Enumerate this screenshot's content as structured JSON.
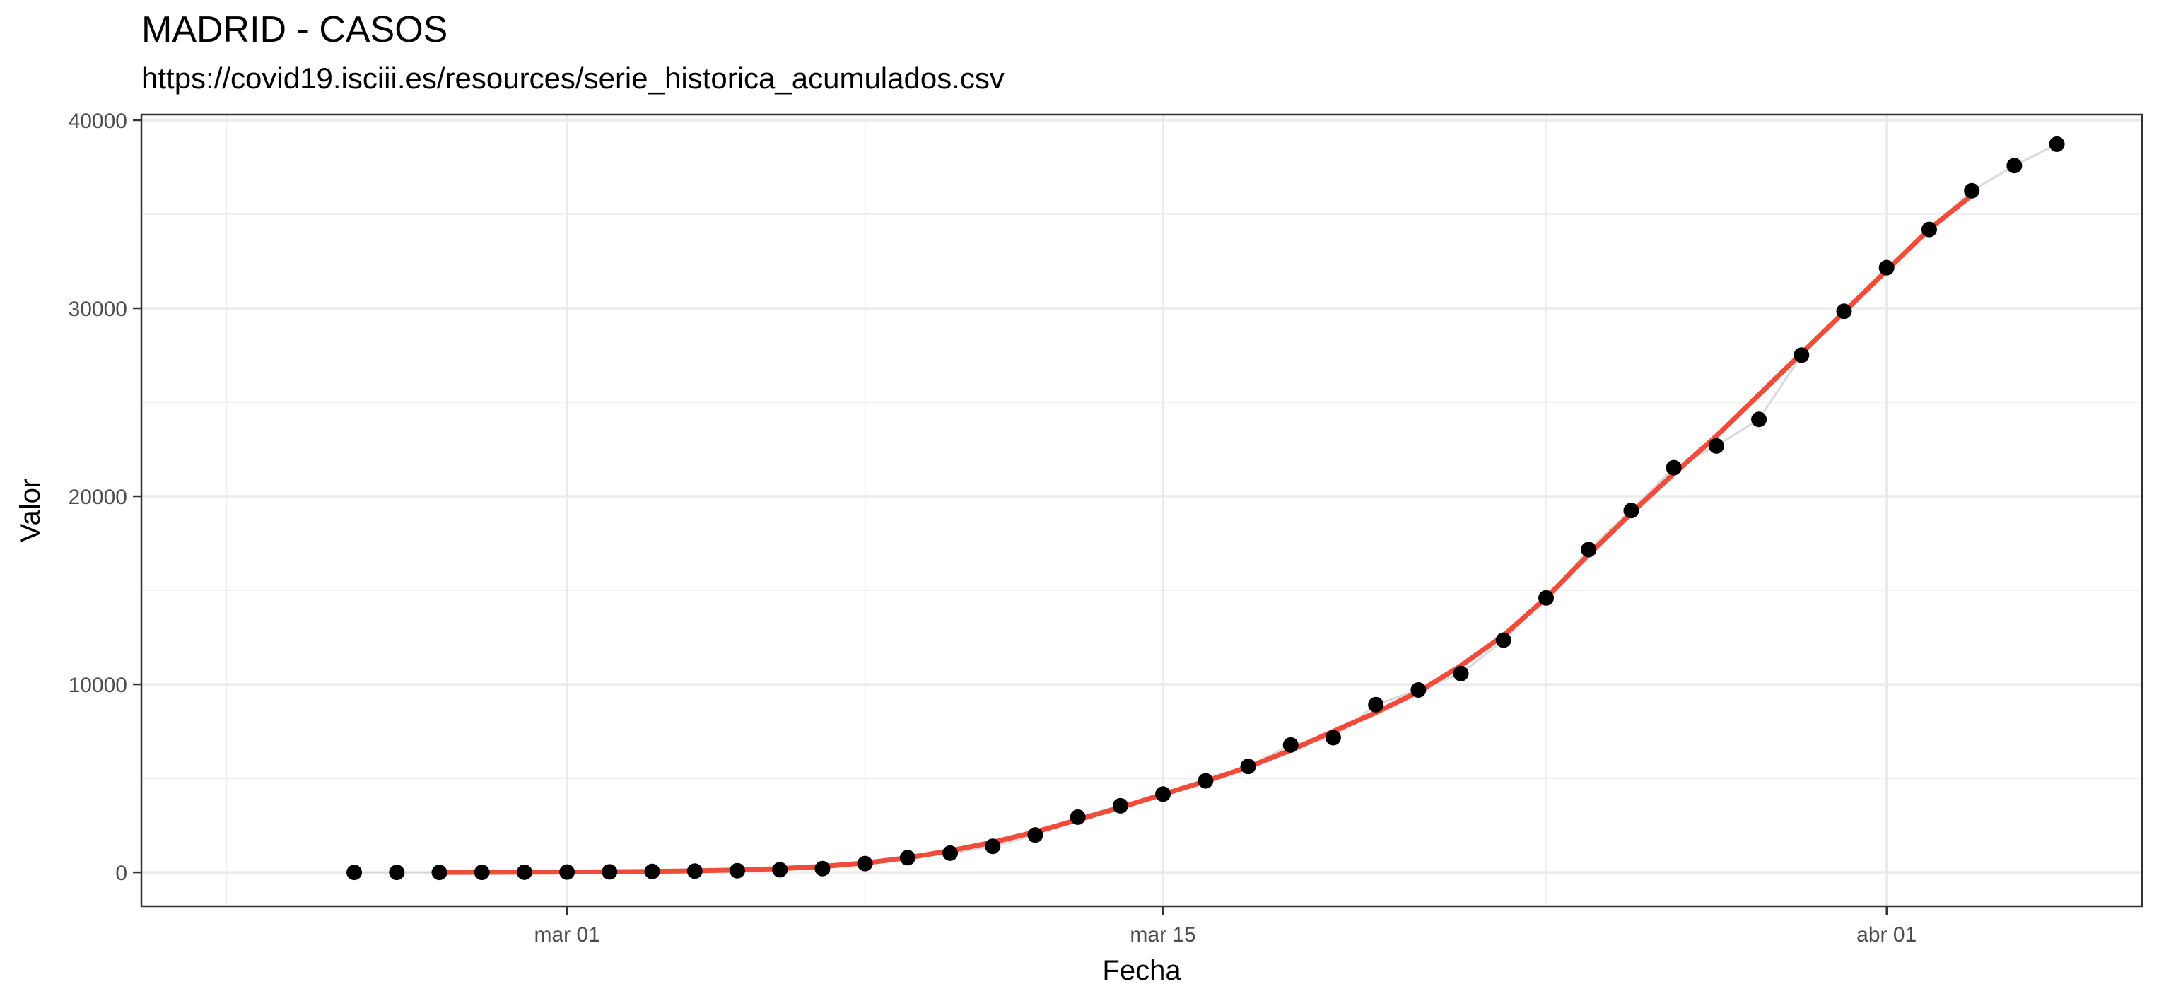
{
  "chart_data": {
    "type": "scatter",
    "title": "MADRID - CASOS",
    "subtitle": "https://covid19.isciii.es/resources/serie_historica_acumulados.csv",
    "xlabel": "Fecha",
    "ylabel": "Valor",
    "xlim": [
      "2020-02-20",
      "2020-04-07"
    ],
    "ylim": [
      -1800,
      40300
    ],
    "x_ticks": [
      {
        "date": "2020-03-01",
        "label": "mar 01"
      },
      {
        "date": "2020-03-15",
        "label": "mar 15"
      },
      {
        "date": "2020-04-01",
        "label": "abr 01"
      }
    ],
    "x_minor_ticks": [
      "2020-02-22",
      "2020-03-08",
      "2020-03-24"
    ],
    "y_ticks": [
      0,
      10000,
      20000,
      30000,
      40000
    ],
    "y_tick_labels": [
      "0",
      "10000",
      "20000",
      "30000",
      "40000"
    ],
    "y_minor_ticks": [
      5000,
      15000,
      25000,
      35000
    ],
    "grid": true,
    "legend": "none",
    "colors": {
      "points": "#000000",
      "smooth": "#f14b3a",
      "connector": "#d9d9d9",
      "grid": "#ebebeb",
      "panel_border": "#333333"
    },
    "series": [
      {
        "kind": "points",
        "x": [
          "2020-02-25",
          "2020-02-26",
          "2020-02-27",
          "2020-02-28",
          "2020-02-29",
          "2020-03-01",
          "2020-03-02",
          "2020-03-03",
          "2020-03-04",
          "2020-03-05",
          "2020-03-06",
          "2020-03-07",
          "2020-03-08",
          "2020-03-09",
          "2020-03-10",
          "2020-03-11",
          "2020-03-12",
          "2020-03-13",
          "2020-03-14",
          "2020-03-15",
          "2020-03-16",
          "2020-03-17",
          "2020-03-18",
          "2020-03-19",
          "2020-03-20",
          "2020-03-21",
          "2020-03-22",
          "2020-03-23",
          "2020-03-24",
          "2020-03-25",
          "2020-03-26",
          "2020-03-27",
          "2020-03-28",
          "2020-03-29",
          "2020-03-30",
          "2020-03-31",
          "2020-04-01",
          "2020-04-02",
          "2020-04-03",
          "2020-04-04",
          "2020-04-05"
        ],
        "y": [
          0,
          0,
          0,
          3,
          10,
          17,
          29,
          49,
          70,
          90,
          137,
          202,
          469,
          782,
          1024,
          1388,
          1990,
          2940,
          3544,
          4165,
          4871,
          5637,
          6777,
          7165,
          8921,
          9702,
          10575,
          12352,
          14597,
          17166,
          19243,
          21520,
          22677,
          24090,
          27509,
          29840,
          32155,
          34188,
          36249,
          37584,
          38724
        ]
      },
      {
        "kind": "smooth",
        "x": [
          "2020-02-27",
          "2020-02-28",
          "2020-02-29",
          "2020-03-01",
          "2020-03-02",
          "2020-03-03",
          "2020-03-04",
          "2020-03-05",
          "2020-03-06",
          "2020-03-07",
          "2020-03-08",
          "2020-03-09",
          "2020-03-10",
          "2020-03-11",
          "2020-03-12",
          "2020-03-13",
          "2020-03-14",
          "2020-03-15",
          "2020-03-16",
          "2020-03-17",
          "2020-03-18",
          "2020-03-19",
          "2020-03-20",
          "2020-03-21",
          "2020-03-22",
          "2020-03-23",
          "2020-03-24",
          "2020-03-25",
          "2020-03-26",
          "2020-03-27",
          "2020-03-28",
          "2020-03-29",
          "2020-03-30",
          "2020-03-31",
          "2020-04-01",
          "2020-04-02",
          "2020-04-03"
        ],
        "y": [
          0,
          5,
          12,
          20,
          35,
          55,
          85,
          130,
          200,
          320,
          500,
          780,
          1150,
          1600,
          2150,
          2800,
          3450,
          4150,
          4850,
          5600,
          6500,
          7500,
          8500,
          9600,
          11000,
          12600,
          14600,
          16900,
          19100,
          21200,
          23200,
          25400,
          27600,
          29800,
          32000,
          34200,
          36000
        ]
      }
    ]
  }
}
